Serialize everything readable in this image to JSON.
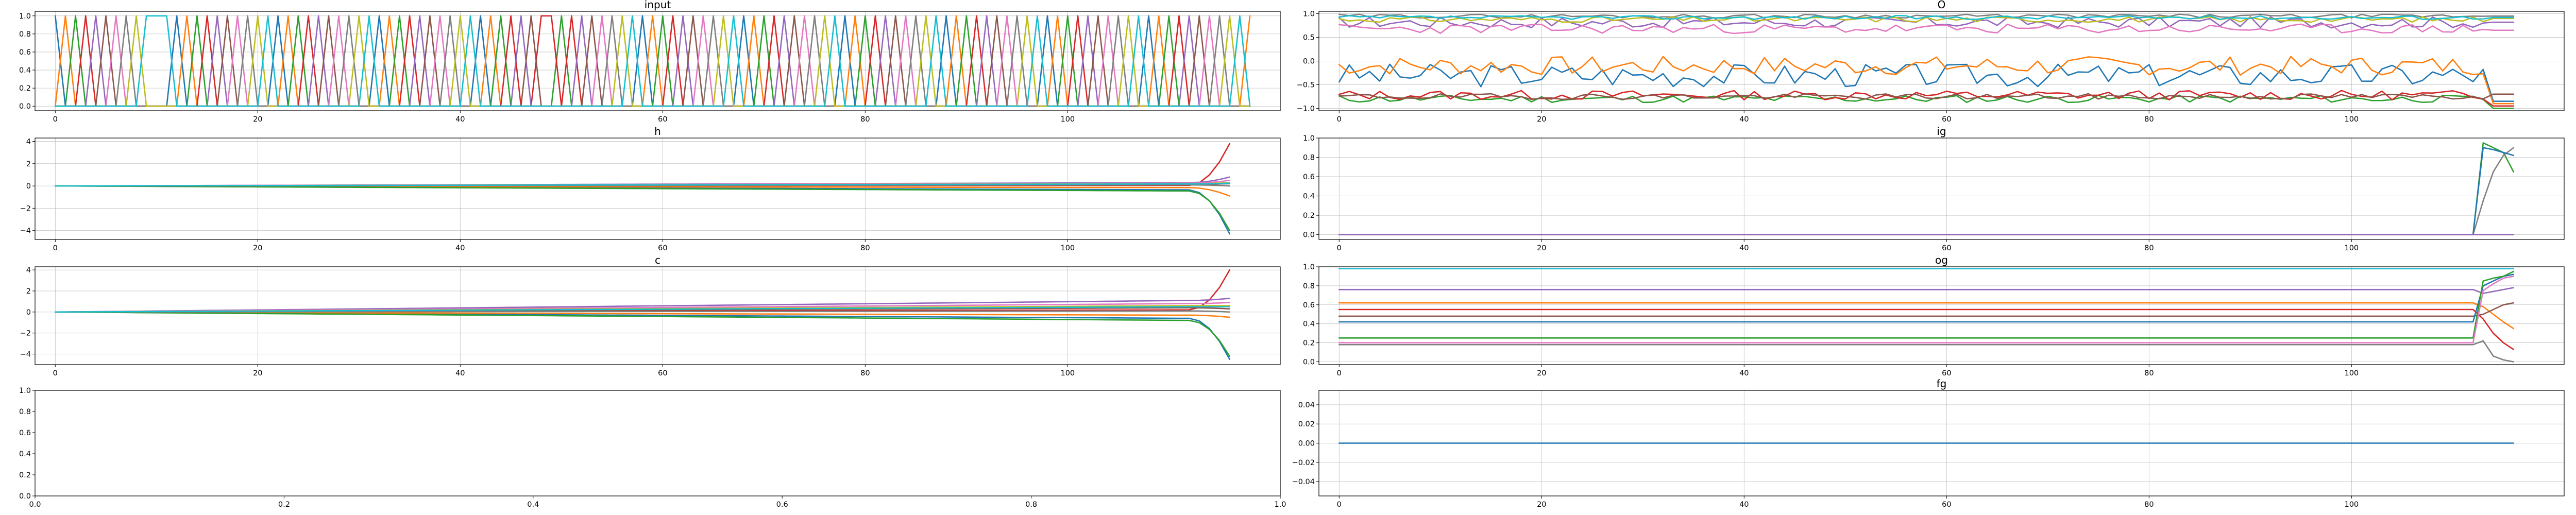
{
  "figure": {
    "layout": "4 rows x 2 columns"
  },
  "palette": [
    "#1f77b4",
    "#ff7f0e",
    "#2ca02c",
    "#d62728",
    "#9467bd",
    "#8c564b",
    "#e377c2",
    "#7f7f7f",
    "#bcbd22",
    "#17becf"
  ],
  "chart_data": [
    {
      "id": "input",
      "type": "line",
      "title": "input",
      "xlim": [
        -2,
        121
      ],
      "ylim": [
        -0.05,
        1.05
      ],
      "grid": true,
      "xticks": [
        0,
        20,
        40,
        60,
        80,
        100
      ],
      "yticks": [
        0.0,
        0.2,
        0.4,
        0.6,
        0.8,
        1.0
      ],
      "xtick_labels": [
        "0",
        "20",
        "40",
        "60",
        "80",
        "100"
      ],
      "ytick_labels": [
        "0.0",
        "0.2",
        "0.4",
        "0.6",
        "0.8",
        "1.0"
      ],
      "description": "one-hot input sequence, 117 steps, each step one of 10 colored channels spikes from 0 to 1",
      "one_hot_channels": [
        0,
        1,
        2,
        3,
        4,
        5,
        6,
        7,
        8,
        9,
        9,
        9,
        0,
        1,
        2,
        3,
        4,
        5,
        6,
        7,
        8,
        9,
        0,
        1,
        2,
        3,
        4,
        5,
        6,
        7,
        8,
        9,
        0,
        1,
        2,
        3,
        4,
        5,
        6,
        7,
        8,
        9,
        0,
        1,
        2,
        3,
        4,
        5,
        3,
        3,
        2,
        3,
        4,
        5,
        6,
        7,
        8,
        9,
        0,
        1,
        2,
        3,
        4,
        5,
        6,
        7,
        8,
        9,
        0,
        1,
        2,
        3,
        4,
        5,
        6,
        7,
        8,
        9,
        0,
        1,
        2,
        3,
        4,
        5,
        6,
        7,
        8,
        9,
        0,
        1,
        2,
        3,
        4,
        5,
        6,
        7,
        8,
        9,
        0,
        1,
        2,
        3,
        4,
        5,
        6,
        7,
        8,
        9,
        0,
        1,
        2,
        3,
        4,
        5,
        6,
        7,
        8,
        9,
        1
      ]
    },
    {
      "id": "o",
      "type": "line",
      "title": "O",
      "xlim": [
        -2,
        121
      ],
      "ylim": [
        -1.05,
        1.05
      ],
      "grid": true,
      "xticks": [
        0,
        20,
        40,
        60,
        80,
        100
      ],
      "yticks": [
        -1.0,
        -0.5,
        0.0,
        0.5,
        1.0
      ],
      "xtick_labels": [
        "0",
        "20",
        "40",
        "60",
        "80",
        "100"
      ],
      "ytick_labels": [
        "−1.0",
        "−0.5",
        "0.0",
        "0.5",
        "1.0"
      ],
      "noisy_series": [
        {
          "color_index": 0,
          "mean": -0.3,
          "amplitude": 0.25,
          "seed": 3,
          "end_value": -0.85
        },
        {
          "color_index": 1,
          "mean": -0.1,
          "amplitude": 0.2,
          "seed": 7,
          "end_value": -0.9
        },
        {
          "color_index": 2,
          "mean": -0.8,
          "amplitude": 0.08,
          "seed": 11,
          "end_value": -1.0
        },
        {
          "color_index": 3,
          "mean": -0.72,
          "amplitude": 0.1,
          "seed": 13,
          "end_value": -0.95
        },
        {
          "color_index": 4,
          "mean": 0.82,
          "amplitude": 0.12,
          "seed": 17,
          "end_value": 0.82
        },
        {
          "color_index": 5,
          "mean": -0.75,
          "amplitude": 0.06,
          "seed": 19,
          "end_value": -0.7
        },
        {
          "color_index": 6,
          "mean": 0.68,
          "amplitude": 0.1,
          "seed": 23,
          "end_value": 0.65
        },
        {
          "color_index": 7,
          "mean": 0.95,
          "amplitude": 0.04,
          "seed": 29,
          "end_value": 0.95
        },
        {
          "color_index": 8,
          "mean": 0.88,
          "amplitude": 0.06,
          "seed": 31,
          "end_value": 0.9
        },
        {
          "color_index": 9,
          "mean": 0.92,
          "amplitude": 0.04,
          "seed": 37,
          "end_value": 0.92
        }
      ]
    },
    {
      "id": "h",
      "type": "line",
      "title": "h",
      "xlim": [
        -2,
        121
      ],
      "ylim": [
        -4.8,
        4.3
      ],
      "grid": true,
      "xticks": [
        0,
        20,
        40,
        60,
        80,
        100
      ],
      "yticks": [
        -4,
        -2,
        0,
        2,
        4
      ],
      "xtick_labels": [
        "0",
        "20",
        "40",
        "60",
        "80",
        "100"
      ],
      "ytick_labels": [
        "−4",
        "−2",
        "0",
        "2",
        "4"
      ],
      "drift_series": [
        {
          "color_index": 0,
          "at_break": -0.35,
          "end_value": -4.3
        },
        {
          "color_index": 1,
          "at_break": -0.15,
          "end_value": -0.9
        },
        {
          "color_index": 2,
          "at_break": -0.45,
          "end_value": -4.0
        },
        {
          "color_index": 3,
          "at_break": 0.05,
          "end_value": 3.8
        },
        {
          "color_index": 4,
          "at_break": 0.3,
          "end_value": 0.8
        },
        {
          "color_index": 5,
          "at_break": 0.15,
          "end_value": 0.2
        },
        {
          "color_index": 6,
          "at_break": 0.25,
          "end_value": 0.5
        },
        {
          "color_index": 7,
          "at_break": 0.1,
          "end_value": 0.0
        },
        {
          "color_index": 8,
          "at_break": 0.2,
          "end_value": 0.3
        },
        {
          "color_index": 9,
          "at_break": 0.18,
          "end_value": 0.25
        }
      ],
      "break_step": 112,
      "last_step": 116
    },
    {
      "id": "ig",
      "type": "line",
      "title": "ig",
      "xlim": [
        -2,
        121
      ],
      "ylim": [
        -0.05,
        1.0
      ],
      "grid": true,
      "xticks": [
        0,
        20,
        40,
        60,
        80,
        100
      ],
      "yticks": [
        0.0,
        0.2,
        0.4,
        0.6,
        0.8,
        1.0
      ],
      "xtick_labels": [
        "0",
        "20",
        "40",
        "60",
        "80",
        "100"
      ],
      "ytick_labels": [
        "0.0",
        "0.2",
        "0.4",
        "0.6",
        "0.8",
        "1.0"
      ],
      "step_series": [
        {
          "color_index": 2,
          "before": 0.0,
          "after": [
            0.95,
            0.9,
            0.85,
            0.65
          ]
        },
        {
          "color_index": 7,
          "before": 0.0,
          "after": [
            0.35,
            0.65,
            0.82,
            0.9
          ]
        },
        {
          "color_index": 0,
          "before": 0.0,
          "after": [
            0.9,
            0.88,
            0.85,
            0.82
          ]
        },
        {
          "color_index": 1,
          "before": 0.0,
          "after": [
            0.0,
            0.0,
            0.0,
            0.0
          ]
        },
        {
          "color_index": 3,
          "before": 0.0,
          "after": [
            0.0,
            0.0,
            0.0,
            0.0
          ]
        },
        {
          "color_index": 4,
          "before": 0.0,
          "after": [
            0.0,
            0.0,
            0.0,
            0.0
          ]
        }
      ],
      "break_step": 112,
      "last_step": 116
    },
    {
      "id": "c",
      "type": "line",
      "title": "c",
      "xlim": [
        -2,
        121
      ],
      "ylim": [
        -5.0,
        4.3
      ],
      "grid": true,
      "xticks": [
        0,
        20,
        40,
        60,
        80,
        100
      ],
      "yticks": [
        -4,
        -2,
        0,
        2,
        4
      ],
      "xtick_labels": [
        "0",
        "20",
        "40",
        "60",
        "80",
        "100"
      ],
      "ytick_labels": [
        "−4",
        "−2",
        "0",
        "2",
        "4"
      ],
      "drift_series": [
        {
          "color_index": 0,
          "at_break": -0.6,
          "end_value": -4.5
        },
        {
          "color_index": 1,
          "at_break": -0.3,
          "end_value": -0.5
        },
        {
          "color_index": 2,
          "at_break": -0.8,
          "end_value": -4.2
        },
        {
          "color_index": 3,
          "at_break": 0.2,
          "end_value": 4.0
        },
        {
          "color_index": 4,
          "at_break": 1.1,
          "end_value": 1.3
        },
        {
          "color_index": 5,
          "at_break": 0.4,
          "end_value": 0.3
        },
        {
          "color_index": 6,
          "at_break": 0.8,
          "end_value": 0.9
        },
        {
          "color_index": 7,
          "at_break": 0.1,
          "end_value": 0.0
        },
        {
          "color_index": 8,
          "at_break": 0.6,
          "end_value": 0.6
        },
        {
          "color_index": 9,
          "at_break": 0.5,
          "end_value": 0.5
        }
      ],
      "break_step": 112,
      "last_step": 116
    },
    {
      "id": "og",
      "type": "line",
      "title": "og",
      "xlim": [
        -2,
        121
      ],
      "ylim": [
        -0.03,
        1.0
      ],
      "grid": true,
      "xticks": [
        0,
        20,
        40,
        60,
        80,
        100
      ],
      "yticks": [
        0.0,
        0.2,
        0.4,
        0.6,
        0.8,
        1.0
      ],
      "xtick_labels": [
        "0",
        "20",
        "40",
        "60",
        "80",
        "100"
      ],
      "ytick_labels": [
        "0.0",
        "0.2",
        "0.4",
        "0.6",
        "0.8",
        "1.0"
      ],
      "step_series": [
        {
          "color_index": 9,
          "before": 0.98,
          "after": [
            0.98,
            0.98,
            0.98,
            0.98
          ]
        },
        {
          "color_index": 4,
          "before": 0.76,
          "after": [
            0.72,
            0.74,
            0.76,
            0.78
          ]
        },
        {
          "color_index": 1,
          "before": 0.62,
          "after": [
            0.58,
            0.5,
            0.42,
            0.35
          ]
        },
        {
          "color_index": 3,
          "before": 0.55,
          "after": [
            0.45,
            0.3,
            0.2,
            0.13
          ]
        },
        {
          "color_index": 5,
          "before": 0.48,
          "after": [
            0.5,
            0.55,
            0.6,
            0.62
          ]
        },
        {
          "color_index": 0,
          "before": 0.42,
          "after": [
            0.8,
            0.85,
            0.9,
            0.92
          ]
        },
        {
          "color_index": 2,
          "before": 0.25,
          "after": [
            0.85,
            0.88,
            0.9,
            0.95
          ]
        },
        {
          "color_index": 6,
          "before": 0.2,
          "after": [
            0.75,
            0.82,
            0.88,
            0.9
          ]
        },
        {
          "color_index": 7,
          "before": 0.18,
          "after": [
            0.22,
            0.06,
            0.02,
            0.0
          ]
        }
      ],
      "break_step": 112,
      "last_step": 116
    },
    {
      "id": "empty",
      "type": "line",
      "title": "",
      "xlim": [
        0.0,
        1.0
      ],
      "ylim": [
        0.0,
        1.0
      ],
      "grid": false,
      "xticks": [
        0.0,
        0.2,
        0.4,
        0.6,
        0.8,
        1.0
      ],
      "yticks": [
        0.0,
        0.2,
        0.4,
        0.6,
        0.8,
        1.0
      ],
      "xtick_labels": [
        "0.0",
        "0.2",
        "0.4",
        "0.6",
        "0.8",
        "1.0"
      ],
      "ytick_labels": [
        "0.0",
        "0.2",
        "0.4",
        "0.6",
        "0.8",
        "1.0"
      ]
    },
    {
      "id": "fg",
      "type": "line",
      "title": "fg",
      "xlim": [
        -2,
        121
      ],
      "ylim": [
        -0.055,
        0.055
      ],
      "grid": true,
      "xticks": [
        0,
        20,
        40,
        60,
        80,
        100
      ],
      "yticks": [
        -0.04,
        -0.02,
        0.0,
        0.02,
        0.04
      ],
      "xtick_labels": [
        "0",
        "20",
        "40",
        "60",
        "80",
        "100"
      ],
      "ytick_labels": [
        "−0.04",
        "−0.02",
        "0.00",
        "0.02",
        "0.04"
      ],
      "constant_series": [
        {
          "color_index": 0,
          "value": 0.0,
          "x_end": 116
        }
      ]
    }
  ]
}
